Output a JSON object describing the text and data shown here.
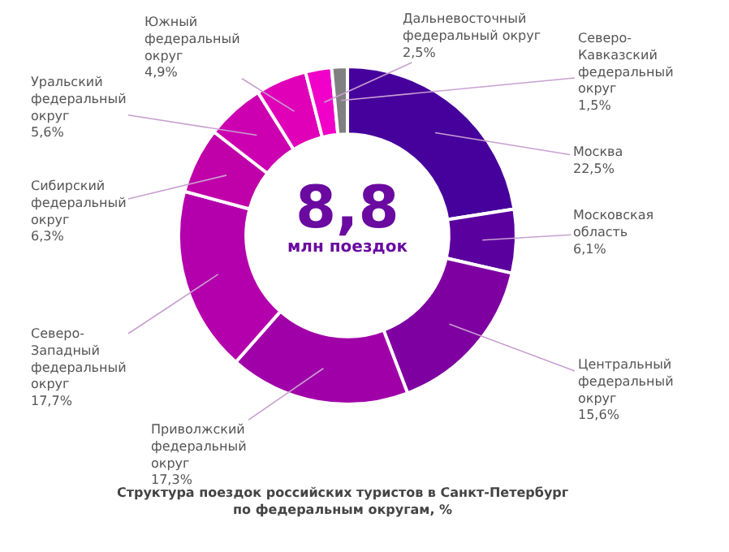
{
  "chart_data": {
    "type": "donut",
    "title": "Структура поездок российских туристов в Санкт-Петербург\nпо федеральным округам, %",
    "categories": [
      "Москва",
      "Московская\nобласть",
      "Центральный\nфедеральный\nокруг",
      "Приволжский\nфедеральный\nокруг",
      "Северо-\nЗападный\nфедеральный\nокруг",
      "Сибирский\nфедеральный\nокруг",
      "Уральский\nфедеральный\nокруг",
      "Южный\nфедеральный\nокруг",
      "Дальневосточный\nфедеральный округ",
      "Северо-\nКавказский\nфедеральный\nокруг"
    ],
    "values": [
      22.5,
      6.1,
      15.6,
      17.3,
      17.7,
      6.3,
      5.6,
      4.9,
      2.5,
      1.5
    ],
    "value_labels": [
      "22,5%",
      "6,1%",
      "15,6%",
      "17,3%",
      "17,7%",
      "6,3%",
      "5,6%",
      "4,9%",
      "2,5%",
      "1,5%"
    ],
    "colors": [
      "#46009c",
      "#5a009e",
      "#7e00a0",
      "#a000a8",
      "#b400ac",
      "#c000a8",
      "#cc00b0",
      "#e000b8",
      "#f000c8",
      "#808080"
    ],
    "annotations": [
      "8,8",
      "млн поездок"
    ],
    "legend": false
  }
}
